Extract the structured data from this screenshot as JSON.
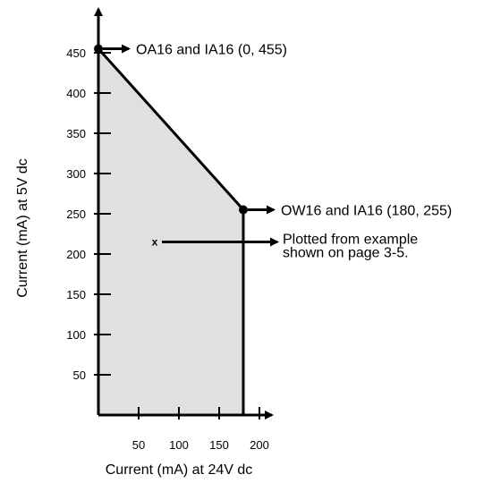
{
  "chart_data": {
    "type": "area",
    "xlabel": "Current (mA) at 24V dc",
    "ylabel": "Current (mA) at 5V dc",
    "xlim": [
      0,
      200
    ],
    "ylim": [
      0,
      500
    ],
    "x_ticks": [
      50,
      100,
      150,
      200
    ],
    "y_ticks": [
      50,
      100,
      150,
      200,
      250,
      300,
      350,
      400,
      450
    ],
    "region": [
      [
        0,
        455
      ],
      [
        180,
        255
      ],
      [
        180,
        0
      ],
      [
        0,
        0
      ]
    ],
    "region_color": "#e0e0e0",
    "points": [
      {
        "x": 0,
        "y": 455,
        "label": "OA16 and IA16 (0, 455)"
      },
      {
        "x": 180,
        "y": 255,
        "label": "OW16 and IA16 (180, 255)"
      }
    ],
    "plotted_example": {
      "x": 70,
      "y": 215,
      "marker": "x",
      "label_lines": [
        "Plotted from example",
        "shown on page 3-5."
      ]
    },
    "grid": false,
    "legend": "none"
  }
}
